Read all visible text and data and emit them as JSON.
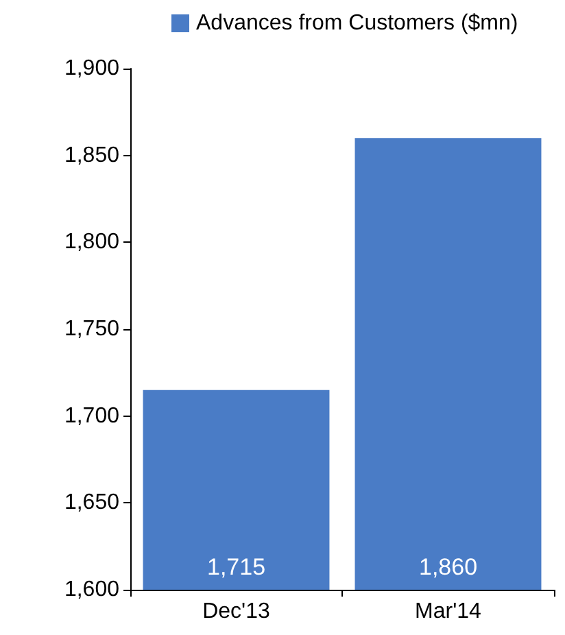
{
  "chart_data": {
    "type": "bar",
    "categories": [
      "Dec'13",
      "Mar'14"
    ],
    "series": [
      {
        "name": "Advances from Customers ($mn)",
        "color": "#4a7cc6",
        "values": [
          1715,
          1860
        ],
        "value_labels": [
          "1,715",
          "1,860"
        ]
      }
    ],
    "ylim": [
      1600,
      1900
    ],
    "yticks": [
      {
        "value": 1600,
        "label": "1,600"
      },
      {
        "value": 1650,
        "label": "1,650"
      },
      {
        "value": 1700,
        "label": "1,700"
      },
      {
        "value": 1750,
        "label": "1,750"
      },
      {
        "value": 1800,
        "label": "1,800"
      },
      {
        "value": 1850,
        "label": "1,850"
      },
      {
        "value": 1900,
        "label": "1,900"
      }
    ],
    "grid": false,
    "legend": "top"
  }
}
